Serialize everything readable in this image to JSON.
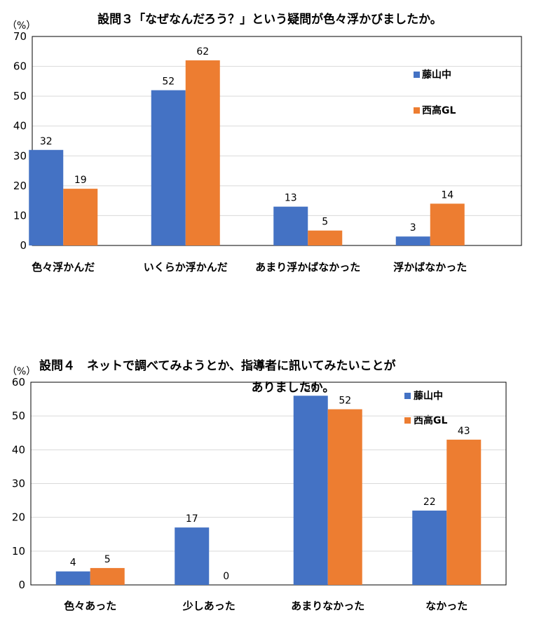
{
  "colors": {
    "series1": "#4472C4",
    "series2": "#ED7D31"
  },
  "chart_data": [
    {
      "type": "bar",
      "title": "設問３「なぜなんだろう？」という疑問が色々浮かびましたか。",
      "unit_label": "（%）",
      "categories": [
        "色々浮かんだ",
        "いくらか浮かんだ",
        "あまり浮かばなかった",
        "浮かばなかった"
      ],
      "series": [
        {
          "name": "藤山中",
          "values": [
            32,
            52,
            13,
            3
          ]
        },
        {
          "name": "西高GL",
          "values": [
            19,
            62,
            5,
            14
          ]
        }
      ],
      "ylim": [
        0,
        70
      ],
      "yticks": [
        0,
        10,
        20,
        30,
        40,
        50,
        60,
        70
      ],
      "grid": true,
      "legend_position": "right"
    },
    {
      "type": "bar",
      "title": "設問４　ネットで調べてみようとか、指導者に訊いてみたいことが",
      "title_line2": "ありましたか。",
      "unit_label": "（%）",
      "categories": [
        "色々あった",
        "少しあった",
        "あまりなかった",
        "なかった"
      ],
      "series": [
        {
          "name": "藤山中",
          "values": [
            4,
            17,
            56,
            22
          ]
        },
        {
          "name": "西高GL",
          "values": [
            5,
            0,
            52,
            43
          ]
        }
      ],
      "ylim": [
        0,
        60
      ],
      "yticks": [
        0,
        10,
        20,
        30,
        40,
        50,
        60
      ],
      "grid": true,
      "legend_position": "top-right"
    }
  ]
}
